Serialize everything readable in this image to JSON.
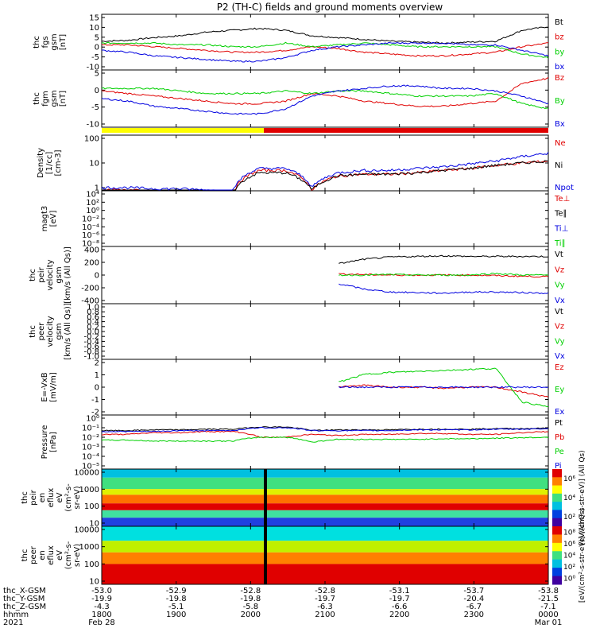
{
  "title": "P2 (TH-C) fields and ground moments overview",
  "colors": {
    "black": "#000000",
    "red": "#e00000",
    "green": "#00d000",
    "blue": "#0000e0",
    "yellow": "#ffff00"
  },
  "chart_data": [
    {
      "type": "line",
      "ylabel": [
        "thc",
        "fgs",
        "gsm",
        "[nT]"
      ],
      "yticks": [
        "15",
        "10",
        "5",
        "0",
        "-5",
        "-10"
      ],
      "ylim": [
        -11,
        16
      ],
      "series": [
        {
          "name": "Bt",
          "color": "black",
          "values": [
            3,
            3.5,
            5,
            6,
            8,
            9,
            10,
            9,
            6,
            5,
            4,
            3,
            2.5,
            2,
            2.5,
            3,
            9,
            11
          ]
        },
        {
          "name": "bz",
          "color": "red",
          "values": [
            1,
            1,
            0,
            -1,
            -2,
            -3,
            -3,
            -2,
            0,
            -1,
            -3,
            -4,
            -5,
            -5,
            -4,
            -3,
            0,
            2
          ]
        },
        {
          "name": "by",
          "color": "green",
          "values": [
            2,
            2,
            2,
            1,
            1,
            0,
            0,
            2,
            0,
            1,
            2,
            1,
            0,
            0,
            0,
            0,
            -4,
            -6
          ]
        },
        {
          "name": "bx",
          "color": "blue",
          "values": [
            -2,
            -3,
            -5,
            -6,
            -7,
            -8,
            -8,
            -6,
            -2,
            0,
            1,
            2,
            2,
            2,
            1,
            1,
            -2,
            -5
          ]
        }
      ]
    },
    {
      "type": "line",
      "ylabel": [
        "thc",
        "fgm",
        "gsm",
        "[nT]"
      ],
      "yticks": [
        "5",
        "0",
        "-5",
        "-10"
      ],
      "ylim": [
        -12,
        8
      ],
      "series": [
        {
          "name": "Bz",
          "color": "red",
          "values": [
            1,
            0,
            -1,
            -2,
            -3,
            -4,
            -4,
            -3,
            0,
            -1,
            -3,
            -4,
            -5,
            -5,
            -4,
            -3,
            4,
            6
          ]
        },
        {
          "name": "By",
          "color": "green",
          "values": [
            2,
            2,
            2,
            1,
            0,
            0,
            0,
            1,
            0,
            1,
            1,
            0,
            -1,
            -1,
            -1,
            0,
            -4,
            -6
          ]
        },
        {
          "name": "Bx",
          "color": "blue",
          "values": [
            -2,
            -3,
            -5,
            -6,
            -7,
            -8,
            -8,
            -6,
            -1,
            1,
            2,
            3,
            3,
            2,
            2,
            1,
            -1,
            -4
          ]
        }
      ]
    },
    {
      "type": "line",
      "scale": "log",
      "ylabel": [
        "Density",
        "[1/cc]",
        "[cm-3]"
      ],
      "yticks": [
        "100",
        "10",
        "1"
      ],
      "series": [
        {
          "name": "Ne",
          "color": "red",
          "values": [
            0.8,
            0.8,
            0.7,
            0.7,
            0.6,
            0.5,
            5,
            5,
            0.8,
            3,
            3.5,
            3.5,
            4,
            5,
            6,
            8,
            10,
            12
          ]
        },
        {
          "name": "Ni",
          "color": "black",
          "values": [
            0.7,
            0.7,
            0.6,
            0.6,
            0.5,
            0.5,
            4,
            4,
            0.8,
            3,
            3.5,
            3.5,
            4,
            5,
            6,
            8,
            10,
            12
          ]
        },
        {
          "name": "Npot",
          "color": "blue",
          "values": [
            1,
            1,
            0.9,
            0.9,
            0.8,
            0.7,
            6,
            6,
            1,
            4,
            5,
            5,
            6,
            7,
            9,
            12,
            18,
            25
          ]
        }
      ]
    },
    {
      "type": "line",
      "scale": "log",
      "ylabel": [
        "magt3",
        "[eV]"
      ],
      "yticks": [
        "10⁴",
        "10²",
        "10⁰",
        "10⁻²",
        "10⁻⁴",
        "10⁻⁶",
        "10⁻⁸"
      ],
      "series": [
        {
          "name": "Te⊥",
          "color": "red",
          "values": []
        },
        {
          "name": "Te∥",
          "color": "black",
          "values": []
        },
        {
          "name": "Ti⊥",
          "color": "blue",
          "values": []
        },
        {
          "name": "Ti∥",
          "color": "green",
          "values": []
        }
      ]
    },
    {
      "type": "line",
      "ylabel": [
        "thc",
        "peir",
        "velocity",
        "gsm",
        "[km/s (All Qs)]"
      ],
      "yticks": [
        "400",
        "200",
        "0",
        "-200",
        "-400"
      ],
      "ylim": [
        -450,
        450
      ],
      "series": [
        {
          "name": "Vt",
          "color": "black",
          "values": [
            null,
            null,
            null,
            null,
            null,
            null,
            null,
            null,
            null,
            200,
            280,
            320,
            330,
            340,
            330,
            330,
            330,
            330
          ]
        },
        {
          "name": "Vz",
          "color": "red",
          "values": [
            null,
            null,
            null,
            null,
            null,
            null,
            null,
            null,
            null,
            20,
            10,
            0,
            0,
            0,
            0,
            -10,
            -20,
            -30
          ]
        },
        {
          "name": "Vy",
          "color": "green",
          "values": [
            null,
            null,
            null,
            null,
            null,
            null,
            null,
            null,
            null,
            0,
            0,
            10,
            0,
            0,
            0,
            30,
            0,
            0
          ]
        },
        {
          "name": "Vx",
          "color": "blue",
          "values": [
            null,
            null,
            null,
            null,
            null,
            null,
            null,
            null,
            null,
            -150,
            -250,
            -300,
            -310,
            -320,
            -300,
            -300,
            -310,
            -320
          ]
        }
      ]
    },
    {
      "type": "line",
      "ylabel": [
        "thc",
        "peer",
        "velocity",
        "gsm",
        "[km/s (All Qs)]"
      ],
      "yticks": [
        "1.0",
        "0.8",
        "0.6",
        "0.4",
        "0.2",
        "0.0",
        "-0.2",
        "-0.4",
        "-0.6",
        "-0.8",
        "-1.0"
      ],
      "ylim": [
        -1.0,
        1.0
      ],
      "series": [
        {
          "name": "Vt",
          "color": "black",
          "values": []
        },
        {
          "name": "Vz",
          "color": "red",
          "values": []
        },
        {
          "name": "Vy",
          "color": "green",
          "values": []
        },
        {
          "name": "Vx",
          "color": "blue",
          "values": []
        }
      ]
    },
    {
      "type": "line",
      "ylabel": [
        "E=-VxB",
        "[mV/m]"
      ],
      "yticks": [
        "2",
        "1",
        "0",
        "-1",
        "-2"
      ],
      "ylim": [
        -2.5,
        2.5
      ],
      "series": [
        {
          "name": "Ez",
          "color": "red",
          "values": [
            null,
            null,
            null,
            null,
            null,
            null,
            null,
            null,
            null,
            0,
            0.2,
            0,
            0,
            -0.1,
            0,
            0,
            -0.5,
            -1
          ]
        },
        {
          "name": "Ey",
          "color": "green",
          "values": [
            null,
            null,
            null,
            null,
            null,
            null,
            null,
            null,
            null,
            0.5,
            1.3,
            1.5,
            1.6,
            1.7,
            1.8,
            1.9,
            -1.5,
            -2
          ]
        },
        {
          "name": "Ex",
          "color": "blue",
          "values": [
            null,
            null,
            null,
            null,
            null,
            null,
            null,
            null,
            null,
            0,
            0,
            0,
            0,
            0,
            0,
            0,
            0,
            0
          ]
        }
      ]
    },
    {
      "type": "line",
      "scale": "log",
      "ylabel": [
        "Pressure",
        "[nPa]"
      ],
      "yticks": [
        "10⁰",
        "10⁻¹",
        "10⁻²",
        "10⁻³",
        "10⁻⁴",
        "10⁻⁵"
      ],
      "series": [
        {
          "name": "Pt",
          "color": "black",
          "values": [
            0.05,
            0.05,
            0.06,
            0.06,
            0.07,
            0.07,
            0.12,
            0.12,
            0.05,
            0.06,
            0.06,
            0.06,
            0.07,
            0.07,
            0.07,
            0.08,
            0.08,
            0.09
          ]
        },
        {
          "name": "Pb",
          "color": "red",
          "values": [
            0.02,
            0.02,
            0.03,
            0.03,
            0.04,
            0.04,
            0.01,
            0.01,
            0.02,
            0.015,
            0.02,
            0.02,
            0.025,
            0.025,
            0.02,
            0.02,
            0.03,
            0.04
          ]
        },
        {
          "name": "Pe",
          "color": "green",
          "values": [
            0.005,
            0.005,
            0.004,
            0.004,
            0.004,
            0.004,
            0.01,
            0.01,
            0.003,
            0.006,
            0.006,
            0.006,
            0.006,
            0.007,
            0.007,
            0.008,
            0.009,
            0.01
          ]
        },
        {
          "name": "Pi",
          "color": "blue",
          "values": [
            0.04,
            0.04,
            0.04,
            0.05,
            0.05,
            0.05,
            0.1,
            0.1,
            0.05,
            0.05,
            0.05,
            0.05,
            0.06,
            0.06,
            0.06,
            0.07,
            0.07,
            0.08
          ]
        }
      ]
    },
    {
      "type": "heatmap",
      "ylabel": [
        "thc",
        "peir",
        "en",
        "eflux",
        "eV",
        "(cm²-s-",
        "sr-eV)"
      ],
      "yticks": [
        "10000",
        "1000",
        "100",
        "10"
      ],
      "colorbar_label": "[eV/(cm²-s-str-eV)] (All Qs)",
      "colorbar_ticks": [
        "10⁶",
        "10⁴",
        "10²"
      ]
    },
    {
      "type": "heatmap",
      "ylabel": [
        "thc",
        "peer",
        "en",
        "eflux",
        "eV",
        "(cm²-s-",
        "sr-eV)"
      ],
      "yticks": [
        "10000",
        "1000",
        "100",
        "10"
      ],
      "colorbar_label": "[eV/(cm²-s-str-eV)] (All Qs)",
      "colorbar_ticks": [
        "10⁸",
        "10⁶",
        "10⁴",
        "10²",
        "10⁰"
      ]
    }
  ],
  "ephemeris": {
    "row_labels": [
      "thc_X-GSM",
      "thc_Y-GSM",
      "thc_Z-GSM",
      "hhmm",
      "2021"
    ],
    "columns": [
      [
        "-53.0",
        "-19.9",
        "-4.3",
        "1800",
        "Feb 28"
      ],
      [
        "-52.9",
        "-19.8",
        "-5.1",
        "1900",
        ""
      ],
      [
        "-52.8",
        "-19.8",
        "-5.8",
        "2000",
        ""
      ],
      [
        "-52.8",
        "-19.7",
        "-6.3",
        "2100",
        ""
      ],
      [
        "-53.1",
        "-19.7",
        "-6.6",
        "2200",
        ""
      ],
      [
        "-53.7",
        "-20.4",
        "-6.7",
        "2300",
        ""
      ],
      [
        "-53.8",
        "-21.5",
        "-7.1",
        "0000",
        "Mar 01"
      ]
    ]
  }
}
